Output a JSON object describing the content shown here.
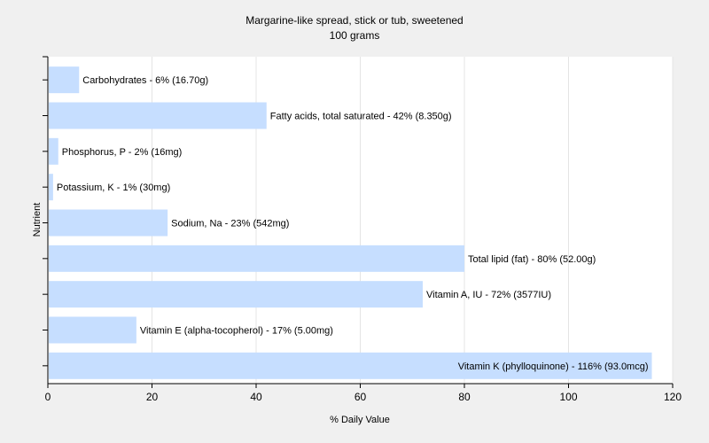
{
  "chart_data": {
    "type": "bar",
    "orientation": "horizontal",
    "title": "Margarine-like spread, stick or tub, sweetened",
    "subtitle": "100 grams",
    "xlabel": "% Daily Value",
    "ylabel": "Nutrient",
    "xlim": [
      0,
      120
    ],
    "xticks": [
      "0",
      "20",
      "40",
      "60",
      "80",
      "100",
      "120"
    ],
    "grid": true,
    "bar_color": "#c6deff",
    "categories": [
      "Carbohydrates",
      "Fatty acids, total saturated",
      "Phosphorus, P",
      "Potassium, K",
      "Sodium, Na",
      "Total lipid (fat)",
      "Vitamin A, IU",
      "Vitamin E (alpha-tocopherol)",
      "Vitamin K (phylloquinone)"
    ],
    "values": [
      6,
      42,
      2,
      1,
      23,
      80,
      72,
      17,
      116
    ],
    "labels": [
      "Carbohydrates - 6% (16.70g)",
      "Fatty acids, total saturated - 42% (8.350g)",
      "Phosphorus, P - 2% (16mg)",
      "Potassium, K - 1% (30mg)",
      "Sodium, Na - 23% (542mg)",
      "Total lipid (fat) - 80% (52.00g)",
      "Vitamin A, IU - 72% (3577IU)",
      "Vitamin E (alpha-tocopherol) - 17% (5.00mg)",
      "Vitamin K (phylloquinone) - 116% (93.0mcg)"
    ]
  }
}
